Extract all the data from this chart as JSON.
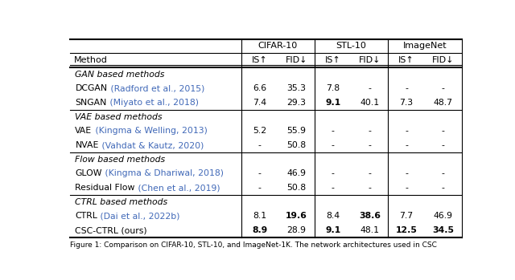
{
  "title": "Figure 1: Comparison on CIFAR-10, STL-10, and ImageNet-1K. The network architectures used in CSC",
  "col_groups": [
    {
      "label": "CIFAR-10",
      "cols": [
        "IS↑",
        "FID↓"
      ]
    },
    {
      "label": "STL-10",
      "cols": [
        "IS↑",
        "FID↓"
      ]
    },
    {
      "label": "ImageNet",
      "cols": [
        "IS↑",
        "FID↓"
      ]
    }
  ],
  "rows": [
    {
      "method": "GAN based methods",
      "category": true,
      "values": [
        "",
        "",
        "",
        "",
        "",
        ""
      ]
    },
    {
      "method_plain": "DCGAN",
      "method_cite": " (Radford et al., 2015)",
      "category": false,
      "values": [
        "6.6",
        "35.3",
        "7.8",
        "-",
        "-",
        "-"
      ],
      "bold": [
        false,
        false,
        false,
        false,
        false,
        false
      ]
    },
    {
      "method_plain": "SNGAN",
      "method_cite": " (Miyato et al., 2018)",
      "category": false,
      "values": [
        "7.4",
        "29.3",
        "9.1",
        "40.1",
        "7.3",
        "48.7"
      ],
      "bold": [
        false,
        false,
        true,
        false,
        false,
        false
      ]
    },
    {
      "method": "VAE based methods",
      "category": true,
      "values": [
        "",
        "",
        "",
        "",
        "",
        ""
      ]
    },
    {
      "method_plain": "VAE",
      "method_cite": " (Kingma & Welling, 2013)",
      "category": false,
      "values": [
        "5.2",
        "55.9",
        "-",
        "-",
        "-",
        "-"
      ],
      "bold": [
        false,
        false,
        false,
        false,
        false,
        false
      ]
    },
    {
      "method_plain": "NVAE",
      "method_cite": " (Vahdat & Kautz, 2020)",
      "category": false,
      "values": [
        "-",
        "50.8",
        "-",
        "-",
        "-",
        "-"
      ],
      "bold": [
        false,
        false,
        false,
        false,
        false,
        false
      ]
    },
    {
      "method": "Flow based methods",
      "category": true,
      "values": [
        "",
        "",
        "",
        "",
        "",
        ""
      ]
    },
    {
      "method_plain": "GLOW",
      "method_cite": " (Kingma & Dhariwal, 2018)",
      "category": false,
      "values": [
        "-",
        "46.9",
        "-",
        "-",
        "-",
        "-"
      ],
      "bold": [
        false,
        false,
        false,
        false,
        false,
        false
      ]
    },
    {
      "method_plain": "Residual Flow",
      "method_cite": " (Chen et al., 2019)",
      "category": false,
      "values": [
        "-",
        "50.8",
        "-",
        "-",
        "-",
        "-"
      ],
      "bold": [
        false,
        false,
        false,
        false,
        false,
        false
      ]
    },
    {
      "method": "CTRL based methods",
      "category": true,
      "values": [
        "",
        "",
        "",
        "",
        "",
        ""
      ]
    },
    {
      "method_plain": "CTRL",
      "method_cite": " (Dai et al., 2022b)",
      "category": false,
      "values": [
        "8.1",
        "19.6",
        "8.4",
        "38.6",
        "7.7",
        "46.9"
      ],
      "bold": [
        false,
        true,
        false,
        true,
        false,
        false
      ]
    },
    {
      "method_plain": "CSC-CTRL (ours)",
      "method_cite": "",
      "category": false,
      "values": [
        "8.9",
        "28.9",
        "9.1",
        "48.1",
        "12.5",
        "34.5"
      ],
      "bold": [
        true,
        false,
        true,
        false,
        true,
        true
      ]
    }
  ],
  "cite_color": "#4169B8",
  "text_color": "#000000",
  "bg_color": "#ffffff"
}
